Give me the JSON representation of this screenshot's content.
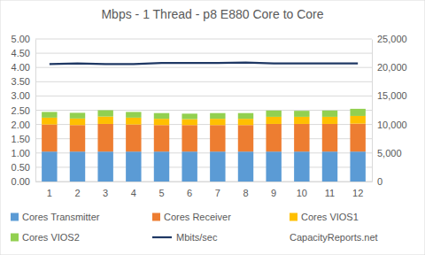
{
  "chart_data": {
    "type": "bar",
    "title": "Mbps - 1 Thread - p8 E880 Core to Core",
    "categories": [
      "1",
      "2",
      "3",
      "4",
      "5",
      "6",
      "7",
      "8",
      "9",
      "10",
      "11",
      "12"
    ],
    "stacked": true,
    "grid": true,
    "legend": "bottom",
    "series": [
      {
        "name": "Cores Transmitter",
        "type": "bar",
        "color": "#5b9bd5",
        "values": [
          1.05,
          1.05,
          1.05,
          1.05,
          1.05,
          1.05,
          1.05,
          1.05,
          1.05,
          1.05,
          1.05,
          1.05
        ]
      },
      {
        "name": "Cores Receiver",
        "type": "bar",
        "color": "#ed7d31",
        "values": [
          0.95,
          0.93,
          0.97,
          0.95,
          0.93,
          0.93,
          0.93,
          0.93,
          0.97,
          0.97,
          0.97,
          0.98
        ]
      },
      {
        "name": "Cores VIOS1",
        "type": "bar",
        "color": "#ffc000",
        "values": [
          0.24,
          0.23,
          0.26,
          0.24,
          0.22,
          0.21,
          0.22,
          0.22,
          0.25,
          0.25,
          0.25,
          0.27
        ]
      },
      {
        "name": "Cores VIOS2",
        "type": "bar",
        "color": "#92d050",
        "values": [
          0.2,
          0.2,
          0.22,
          0.2,
          0.2,
          0.19,
          0.2,
          0.2,
          0.22,
          0.21,
          0.22,
          0.25
        ]
      },
      {
        "name": "Mbits/sec",
        "type": "line",
        "axis": "y2",
        "color": "#1f3864",
        "values": [
          20600,
          20700,
          20600,
          20600,
          20800,
          20800,
          20800,
          20850,
          20700,
          20700,
          20700,
          20700
        ]
      }
    ],
    "ylim": [
      0,
      5
    ],
    "yticks": [
      {
        "value": 0,
        "label": "0.00"
      },
      {
        "value": 0.5,
        "label": "0.50"
      },
      {
        "value": 1,
        "label": "1.00"
      },
      {
        "value": 1.5,
        "label": "1.50"
      },
      {
        "value": 2,
        "label": "2.00"
      },
      {
        "value": 2.5,
        "label": "2.50"
      },
      {
        "value": 3,
        "label": "3.00"
      },
      {
        "value": 3.5,
        "label": "3.50"
      },
      {
        "value": 4,
        "label": "4.00"
      },
      {
        "value": 4.5,
        "label": "4.50"
      },
      {
        "value": 5,
        "label": "5.00"
      }
    ],
    "y2lim": [
      0,
      25000
    ],
    "y2ticks": [
      0,
      {
        "value": 5000,
        "label": "5,000"
      },
      {
        "value": 10000,
        "label": "10,000"
      },
      {
        "value": 15000,
        "label": "15,000"
      },
      {
        "value": 20000,
        "label": "20,000"
      },
      {
        "value": 25000,
        "label": "25,000"
      }
    ],
    "annotations": [
      "CapacityReports.net"
    ]
  }
}
